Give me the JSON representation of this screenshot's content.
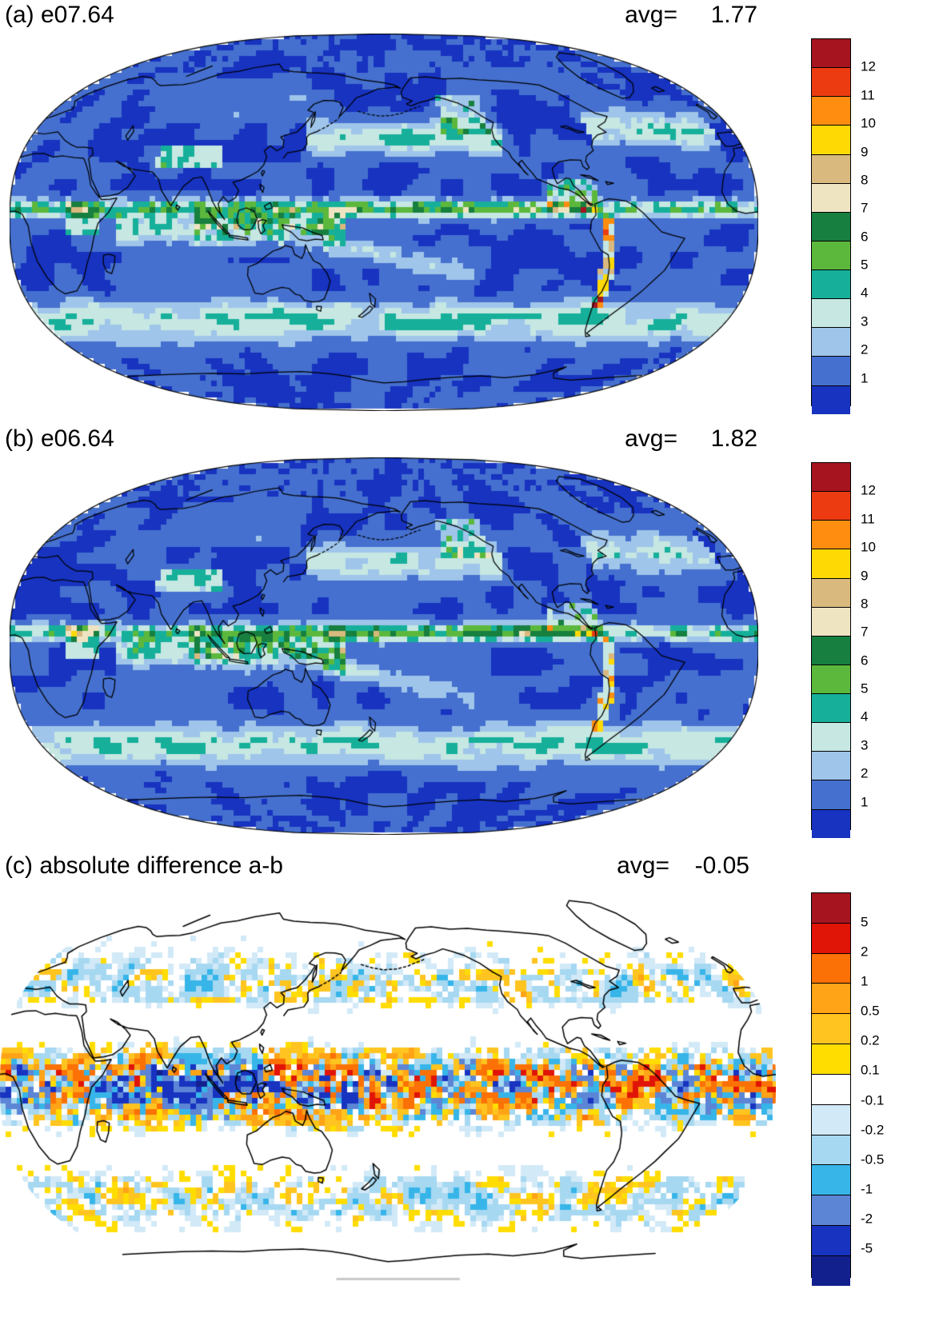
{
  "figure": {
    "panels": [
      {
        "id": "a",
        "title": "(a) e07.64",
        "avg_label": "avg=",
        "avg_value": "1.77",
        "colorbar": {
          "cells": [
            "#a6151f",
            "#ec3b10",
            "#ff8d0f",
            "#ffd904",
            "#d9b97e",
            "#efe4c2",
            "#177f3f",
            "#5cb83c",
            "#16b09a",
            "#c6e7e2",
            "#9fc5ea",
            "#4570cf",
            "#1733c0"
          ],
          "labels": [
            "12",
            "11",
            "10",
            "9",
            "8",
            "7",
            "6",
            "5",
            "4",
            "3",
            "2",
            "1"
          ]
        }
      },
      {
        "id": "b",
        "title": "(b) e06.64",
        "avg_label": "avg=",
        "avg_value": "1.82",
        "colorbar": {
          "cells": [
            "#a6151f",
            "#ec3b10",
            "#ff8d0f",
            "#ffd904",
            "#d9b97e",
            "#efe4c2",
            "#177f3f",
            "#5cb83c",
            "#16b09a",
            "#c6e7e2",
            "#9fc5ea",
            "#4570cf",
            "#1733c0"
          ],
          "labels": [
            "12",
            "11",
            "10",
            "9",
            "8",
            "7",
            "6",
            "5",
            "4",
            "3",
            "2",
            "1"
          ]
        }
      },
      {
        "id": "c",
        "title": "(c) absolute difference a-b",
        "avg_label": "avg=",
        "avg_value": "-0.05",
        "colorbar": {
          "cells": [
            "#a6151f",
            "#e01407",
            "#fb7105",
            "#ffa317",
            "#ffc41f",
            "#ffdd00",
            "#ffffff",
            "#d2e9f7",
            "#a6d8f1",
            "#37b5e9",
            "#5c85d6",
            "#1733c0",
            "#12208e"
          ],
          "labels": [
            "5",
            "2",
            "1",
            "0.5",
            "0.2",
            "0.1",
            "-0.1",
            "-0.2",
            "-0.5",
            "-1",
            "-2",
            "-5"
          ]
        }
      }
    ]
  },
  "chart_data": [
    {
      "type": "heatmap",
      "panel": "a",
      "title": "(a) e07.64",
      "stat_label": "avg=",
      "stat_value": 1.77,
      "projection": "global pseudo-cylindrical world map, Pacific-centered",
      "colorbar_tick_labels": [
        12,
        11,
        10,
        9,
        8,
        7,
        6,
        5,
        4,
        3,
        2,
        1
      ],
      "legend_position": "right",
      "description": "Global field: most subtropical oceans and polar regions 0-2 (dark blue), mid-latitude storm tracks 3-5 (pale cyan/teal), tropical warm pool, ITCZ and SPCZ 5-9 (greens/tan), isolated 9-12 maxima (yellow/orange/red) in the eastern Pacific ITCZ and along the Andes coast."
    },
    {
      "type": "heatmap",
      "panel": "b",
      "title": "(b) e06.64",
      "stat_label": "avg=",
      "stat_value": 1.82,
      "projection": "global pseudo-cylindrical world map, Pacific-centered",
      "colorbar_tick_labels": [
        12,
        11,
        10,
        9,
        8,
        7,
        6,
        5,
        4,
        3,
        2,
        1
      ],
      "legend_position": "right",
      "description": "Same field as panel (a) from a second simulation: similar spatial pattern with slightly higher global mean; low values over subtropical gyres, 3-5 in storm tracks, 5-12 across the tropical convergence zones and Andes."
    },
    {
      "type": "heatmap",
      "panel": "c",
      "title": "(c) absolute difference a-b",
      "stat_label": "avg=",
      "stat_value": -0.05,
      "projection": "global pseudo-cylindrical world map, Pacific-centered",
      "colorbar_tick_labels": [
        5,
        2,
        1,
        0.5,
        0.2,
        0.1,
        -0.1,
        -0.2,
        -0.5,
        -1,
        -2,
        -5
      ],
      "legend_position": "right",
      "description": "Difference a minus b: near zero (white) over the subtropics and poles, weak negative values (-0.1 to -0.5, light blue) along mid-latitude storm tracks, and strong mixed positive/negative anomalies (±0.5 to ±5, orange/red and blue) in the tropics along the ITCZ, Indian Ocean and Maritime Continent."
    }
  ]
}
